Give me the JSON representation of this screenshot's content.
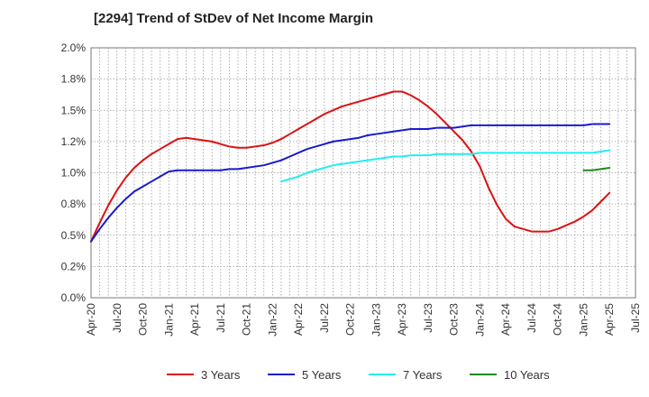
{
  "chart_data": {
    "type": "line",
    "title": "[2294]  Trend of StDev of Net Income Margin",
    "xlabel": "",
    "ylabel": "",
    "x": [
      "Apr-20",
      "May-20",
      "Jun-20",
      "Jul-20",
      "Aug-20",
      "Sep-20",
      "Oct-20",
      "Nov-20",
      "Dec-20",
      "Jan-21",
      "Feb-21",
      "Mar-21",
      "Apr-21",
      "May-21",
      "Jun-21",
      "Jul-21",
      "Aug-21",
      "Sep-21",
      "Oct-21",
      "Nov-21",
      "Dec-21",
      "Jan-22",
      "Feb-22",
      "Mar-22",
      "Apr-22",
      "May-22",
      "Jun-22",
      "Jul-22",
      "Aug-22",
      "Sep-22",
      "Oct-22",
      "Nov-22",
      "Dec-22",
      "Jan-23",
      "Feb-23",
      "Mar-23",
      "Apr-23",
      "May-23",
      "Jun-23",
      "Jul-23",
      "Aug-23",
      "Sep-23",
      "Oct-23",
      "Nov-23",
      "Dec-23",
      "Jan-24",
      "Feb-24",
      "Mar-24",
      "Apr-24",
      "May-24",
      "Jun-24",
      "Jul-24",
      "Aug-24",
      "Sep-24",
      "Oct-24",
      "Nov-24",
      "Dec-24",
      "Jan-25",
      "Feb-25",
      "Mar-25",
      "Apr-25"
    ],
    "x_tick_labels": [
      "Apr-20",
      "Jul-20",
      "Oct-20",
      "Jan-21",
      "Apr-21",
      "Jul-21",
      "Oct-21",
      "Jan-22",
      "Apr-22",
      "Jul-22",
      "Oct-22",
      "Jan-23",
      "Apr-23",
      "Jul-23",
      "Oct-23",
      "Jan-24",
      "Apr-24",
      "Jul-24",
      "Oct-24",
      "Jan-25",
      "Apr-25",
      "Jul-25"
    ],
    "y_tick_labels": [
      "0.0%",
      "0.2%",
      "0.5%",
      "0.8%",
      "1.0%",
      "1.2%",
      "1.5%",
      "1.8%",
      "2.0%"
    ],
    "ylim": [
      0,
      2.0
    ],
    "grid": true,
    "legend_position": "bottom",
    "series": [
      {
        "name": "3 Years",
        "color": "#dd1111",
        "values": [
          0.45,
          0.6,
          0.74,
          0.86,
          0.96,
          1.04,
          1.1,
          1.15,
          1.19,
          1.23,
          1.27,
          1.28,
          1.27,
          1.26,
          1.25,
          1.23,
          1.21,
          1.2,
          1.2,
          1.21,
          1.22,
          1.24,
          1.27,
          1.31,
          1.35,
          1.39,
          1.43,
          1.47,
          1.5,
          1.53,
          1.55,
          1.57,
          1.59,
          1.61,
          1.63,
          1.65,
          1.65,
          1.62,
          1.58,
          1.53,
          1.47,
          1.4,
          1.33,
          1.26,
          1.17,
          1.05,
          0.88,
          0.74,
          0.63,
          0.57,
          0.55,
          0.53,
          0.53,
          0.53,
          0.55,
          0.58,
          0.61,
          0.65,
          0.7,
          0.77,
          0.84
        ]
      },
      {
        "name": "5 Years",
        "color": "#1a1acc",
        "values": [
          0.45,
          0.55,
          0.64,
          0.72,
          0.79,
          0.85,
          0.89,
          0.93,
          0.97,
          1.01,
          1.02,
          1.02,
          1.02,
          1.02,
          1.02,
          1.02,
          1.03,
          1.03,
          1.04,
          1.05,
          1.06,
          1.08,
          1.1,
          1.13,
          1.16,
          1.19,
          1.21,
          1.23,
          1.25,
          1.26,
          1.27,
          1.28,
          1.3,
          1.31,
          1.32,
          1.33,
          1.34,
          1.35,
          1.35,
          1.35,
          1.36,
          1.36,
          1.36,
          1.37,
          1.38,
          1.38,
          1.38,
          1.38,
          1.38,
          1.38,
          1.38,
          1.38,
          1.38,
          1.38,
          1.38,
          1.38,
          1.38,
          1.38,
          1.39,
          1.39,
          1.39
        ]
      },
      {
        "name": "7 Years",
        "color": "#22eeee",
        "values": [
          null,
          null,
          null,
          null,
          null,
          null,
          null,
          null,
          null,
          null,
          null,
          null,
          null,
          null,
          null,
          null,
          null,
          null,
          null,
          null,
          null,
          null,
          0.93,
          0.95,
          0.97,
          1.0,
          1.02,
          1.04,
          1.06,
          1.07,
          1.08,
          1.09,
          1.1,
          1.11,
          1.12,
          1.13,
          1.13,
          1.14,
          1.14,
          1.14,
          1.15,
          1.15,
          1.15,
          1.15,
          1.15,
          1.16,
          1.16,
          1.16,
          1.16,
          1.16,
          1.16,
          1.16,
          1.16,
          1.16,
          1.16,
          1.16,
          1.16,
          1.16,
          1.16,
          1.17,
          1.18
        ]
      },
      {
        "name": "10 Years",
        "color": "#228822",
        "values": [
          null,
          null,
          null,
          null,
          null,
          null,
          null,
          null,
          null,
          null,
          null,
          null,
          null,
          null,
          null,
          null,
          null,
          null,
          null,
          null,
          null,
          null,
          null,
          null,
          null,
          null,
          null,
          null,
          null,
          null,
          null,
          null,
          null,
          null,
          null,
          null,
          null,
          null,
          null,
          null,
          null,
          null,
          null,
          null,
          null,
          null,
          null,
          null,
          null,
          null,
          null,
          null,
          null,
          null,
          null,
          null,
          null,
          1.02,
          1.02,
          1.03,
          1.04
        ]
      }
    ]
  }
}
